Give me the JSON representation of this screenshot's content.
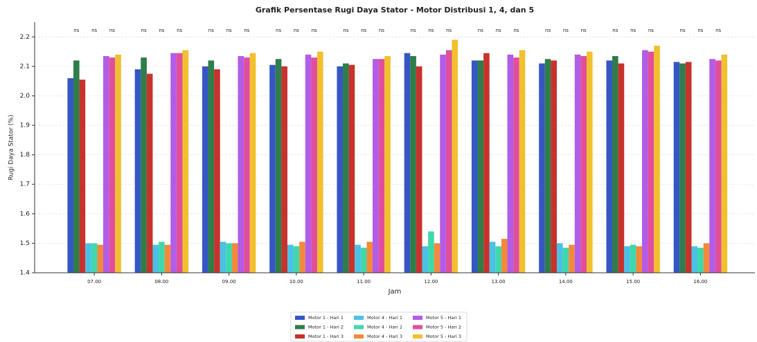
{
  "chart_data": {
    "type": "bar",
    "title": "Grafik Persentase Rugi Daya Stator - Motor Distribusi 1, 4, dan 5",
    "x_label": "Jam",
    "y_label": "Rugi Daya Stator (%)",
    "categories": [
      "07.00",
      "08.00",
      "09.00",
      "10.00",
      "11.00",
      "12.00",
      "13.00",
      "14.00",
      "15.00",
      "16.00"
    ],
    "series": [
      {
        "name": "Motor 1 - Hari 1",
        "color": "#3557c4",
        "values": [
          2.06,
          2.09,
          2.1,
          2.105,
          2.1,
          2.145,
          2.12,
          2.11,
          2.12,
          2.115
        ]
      },
      {
        "name": "Motor 1 - Hari 2",
        "color": "#2e7d4a",
        "values": [
          2.12,
          2.13,
          2.12,
          2.125,
          2.11,
          2.135,
          2.12,
          2.125,
          2.135,
          2.11
        ]
      },
      {
        "name": "Motor 1 - Hari 3",
        "color": "#c8322c",
        "values": [
          2.055,
          2.075,
          2.09,
          2.1,
          2.105,
          2.1,
          2.145,
          2.12,
          2.11,
          2.115
        ]
      },
      {
        "name": "Motor 4 - Hari 1",
        "color": "#4cc0e6",
        "values": [
          1.5,
          1.495,
          1.505,
          1.495,
          1.495,
          1.49,
          1.505,
          1.5,
          1.49,
          1.49
        ]
      },
      {
        "name": "Motor 4 - Hari 2",
        "color": "#3fd8ad",
        "values": [
          1.5,
          1.505,
          1.5,
          1.49,
          1.485,
          1.54,
          1.49,
          1.485,
          1.495,
          1.485
        ]
      },
      {
        "name": "Motor 4 - Hari 3",
        "color": "#f28a3a",
        "values": [
          1.495,
          1.495,
          1.5,
          1.505,
          1.505,
          1.5,
          1.515,
          1.495,
          1.49,
          1.5
        ]
      },
      {
        "name": "Motor 5 - Hari 1",
        "color": "#b25ce8",
        "values": [
          2.135,
          2.145,
          2.135,
          2.14,
          2.125,
          2.14,
          2.14,
          2.14,
          2.155,
          2.125
        ]
      },
      {
        "name": "Motor 5 - Hari 2",
        "color": "#e04f9c",
        "values": [
          2.13,
          2.145,
          2.13,
          2.13,
          2.125,
          2.155,
          2.13,
          2.135,
          2.15,
          2.12
        ]
      },
      {
        "name": "Motor 5 - Hari 3",
        "color": "#f2c02e",
        "values": [
          2.14,
          2.155,
          2.145,
          2.15,
          2.135,
          2.19,
          2.155,
          2.15,
          2.17,
          2.14
        ]
      }
    ],
    "annotations": [
      [
        "ns",
        "ns",
        "ns"
      ],
      [
        "ns",
        "ns",
        "ns"
      ],
      [
        "ns",
        "ns",
        "ns"
      ],
      [
        "ns",
        "ns",
        "ns"
      ],
      [
        "ns",
        "ns",
        "ns"
      ],
      [
        "ns",
        "ns",
        "ns"
      ],
      [
        "ns",
        "ns",
        "ns"
      ],
      [
        "ns",
        "ns",
        "ns"
      ],
      [
        "ns",
        "ns",
        "ns"
      ],
      [
        "ns",
        "ns",
        "ns"
      ]
    ],
    "ylim": [
      1.4,
      2.25
    ],
    "yticks": [
      1.4,
      1.5,
      1.6,
      1.7,
      1.8,
      1.9,
      {
        "value": 2.0,
        "label": "2.0"
      },
      2.1,
      2.2
    ],
    "grid": true,
    "legend": "bottom"
  }
}
